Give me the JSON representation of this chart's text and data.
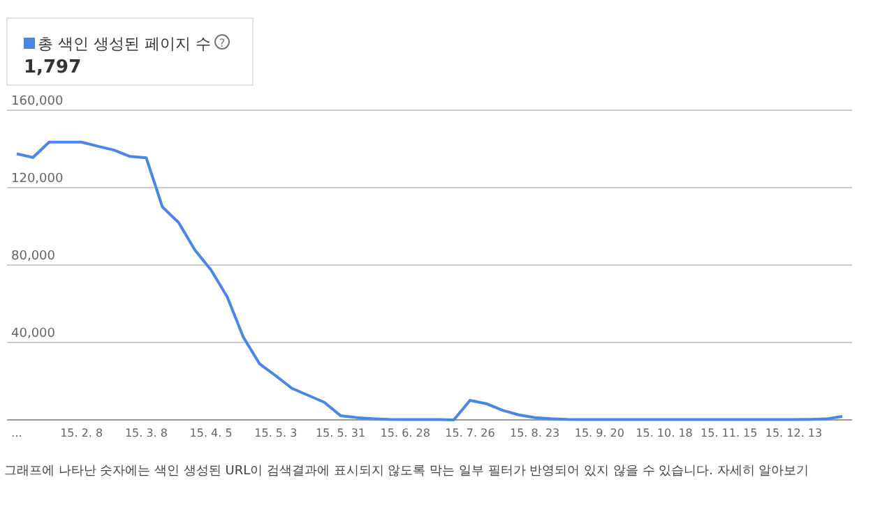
{
  "chart_data": {
    "type": "line",
    "legend": "top left",
    "grid": "y",
    "marker": "none",
    "line_style": "solid",
    "categories": [
      "...",
      null,
      null,
      null,
      "15. 2. 8",
      null,
      null,
      null,
      "15. 3. 8",
      null,
      null,
      null,
      "15. 4. 5",
      null,
      null,
      null,
      "15. 5. 3",
      null,
      null,
      null,
      "15. 5. 31",
      null,
      null,
      null,
      "15. 6. 28",
      null,
      null,
      null,
      "15. 7. 26",
      null,
      null,
      null,
      "15. 8. 23",
      null,
      null,
      null,
      "15. 9. 20",
      null,
      null,
      null,
      "15. 10. 18",
      null,
      null,
      null,
      "15. 11. 15",
      null,
      null,
      null,
      "15. 12. 13",
      null,
      null,
      null
    ],
    "ylim": [
      0,
      160000
    ],
    "yticks": [
      {
        "value": 40000,
        "label": "40,000"
      },
      {
        "value": 80000,
        "label": "80,000"
      },
      {
        "value": 120000,
        "label": "120,000"
      },
      {
        "value": 160000,
        "label": "160,000"
      }
    ],
    "series": [
      {
        "name": "총 색인 생성된 페이지 수",
        "color": "#4a86e8",
        "values": [
          137500,
          135600,
          143500,
          143500,
          143500,
          141400,
          139400,
          136100,
          135400,
          110000,
          102000,
          87800,
          77500,
          63600,
          42700,
          29000,
          22800,
          16300,
          12700,
          9100,
          2200,
          1200,
          600,
          300,
          200,
          200,
          200,
          0,
          10100,
          8400,
          5000,
          2600,
          1200,
          600,
          300,
          200,
          200,
          200,
          200,
          200,
          200,
          200,
          200,
          200,
          200,
          200,
          200,
          200,
          200,
          300,
          500,
          1800
        ]
      }
    ],
    "annotations": [
      "1,797",
      "?",
      "그래프에 나타난 숫자에는 색인 생성된 URL이 검색결과에 표시되지 않도록 막는 일부 필터가 반영되어 있지 않을 수 있습니다. 자세히 알아보기"
    ]
  }
}
